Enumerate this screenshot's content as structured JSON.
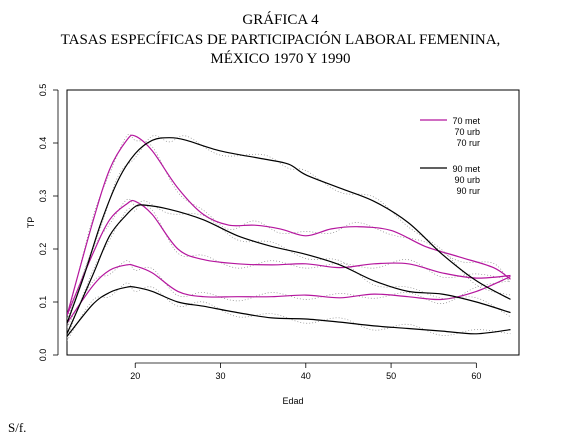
{
  "header": {
    "line1": "GRÁFICA 4",
    "line2": "TASAS ESPECÍFICAS DE PARTICIPACIÓN LABORAL FEMENINA,",
    "line3": "MÉXICO 1970 Y 1990"
  },
  "footer": {
    "source": "S/f."
  },
  "chart_data": {
    "type": "line",
    "xlabel": "Edad",
    "ylabel": "TP",
    "xlim": [
      12,
      65
    ],
    "ylim": [
      0.0,
      0.5
    ],
    "x_ticks": [
      20,
      30,
      40,
      50,
      60
    ],
    "y_ticks": [
      0.0,
      0.1,
      0.2,
      0.3,
      0.4,
      0.5
    ],
    "x_tick_labels": [
      "20",
      "30",
      "40",
      "50",
      "60"
    ],
    "y_tick_labels": [
      "0.0",
      "0.1",
      "0.2",
      "0.3",
      "0.4",
      "0.5"
    ],
    "legend": {
      "placement": "top-right",
      "groups": [
        {
          "color": "#b5169e",
          "labels": [
            "70 met",
            "70 urb",
            "70 rur"
          ]
        },
        {
          "color": "#000000",
          "labels": [
            "90 met",
            "90 urb",
            "90 rur"
          ]
        }
      ]
    },
    "series": [
      {
        "name": "70 met",
        "color": "#b5169e",
        "x": [
          12,
          15,
          17,
          19,
          20,
          22,
          25,
          28,
          31,
          34,
          37,
          40,
          43,
          46,
          50,
          54,
          58,
          62,
          64
        ],
        "y": [
          0.075,
          0.25,
          0.35,
          0.405,
          0.413,
          0.385,
          0.315,
          0.265,
          0.245,
          0.245,
          0.238,
          0.225,
          0.238,
          0.242,
          0.235,
          0.205,
          0.185,
          0.165,
          0.143
        ]
      },
      {
        "name": "70 urb",
        "color": "#b5169e",
        "x": [
          12,
          15,
          17,
          19,
          20,
          22,
          25,
          28,
          32,
          36,
          40,
          44,
          48,
          52,
          56,
          60,
          64
        ],
        "y": [
          0.075,
          0.19,
          0.255,
          0.285,
          0.29,
          0.265,
          0.2,
          0.18,
          0.172,
          0.17,
          0.172,
          0.165,
          0.172,
          0.172,
          0.155,
          0.145,
          0.15
        ]
      },
      {
        "name": "70 rur",
        "color": "#b5169e",
        "x": [
          12,
          15,
          17,
          19,
          20,
          22,
          25,
          28,
          32,
          36,
          40,
          44,
          48,
          52,
          56,
          60,
          64
        ],
        "y": [
          0.06,
          0.13,
          0.16,
          0.17,
          0.168,
          0.155,
          0.12,
          0.11,
          0.11,
          0.11,
          0.113,
          0.108,
          0.115,
          0.11,
          0.105,
          0.12,
          0.148
        ]
      },
      {
        "name": "90 met",
        "color": "#000000",
        "x": [
          12,
          14,
          16,
          18,
          20,
          22,
          24,
          26,
          30,
          35,
          38,
          40,
          44,
          48,
          52,
          56,
          60,
          64
        ],
        "y": [
          0.06,
          0.15,
          0.25,
          0.33,
          0.38,
          0.405,
          0.41,
          0.405,
          0.385,
          0.37,
          0.36,
          0.34,
          0.315,
          0.29,
          0.25,
          0.19,
          0.14,
          0.105
        ]
      },
      {
        "name": "90 urb",
        "color": "#000000",
        "x": [
          12,
          15,
          17,
          19,
          20,
          21,
          24,
          28,
          32,
          36,
          40,
          44,
          48,
          52,
          56,
          60,
          64
        ],
        "y": [
          0.04,
          0.15,
          0.225,
          0.265,
          0.28,
          0.283,
          0.275,
          0.255,
          0.225,
          0.205,
          0.19,
          0.17,
          0.14,
          0.12,
          0.115,
          0.1,
          0.08
        ]
      },
      {
        "name": "90 rur",
        "color": "#000000",
        "x": [
          12,
          15,
          17,
          19,
          20,
          22,
          25,
          28,
          32,
          36,
          40,
          44,
          48,
          52,
          56,
          60,
          64
        ],
        "y": [
          0.035,
          0.095,
          0.118,
          0.128,
          0.128,
          0.12,
          0.1,
          0.092,
          0.08,
          0.07,
          0.068,
          0.062,
          0.055,
          0.05,
          0.045,
          0.04,
          0.048
        ]
      }
    ]
  }
}
